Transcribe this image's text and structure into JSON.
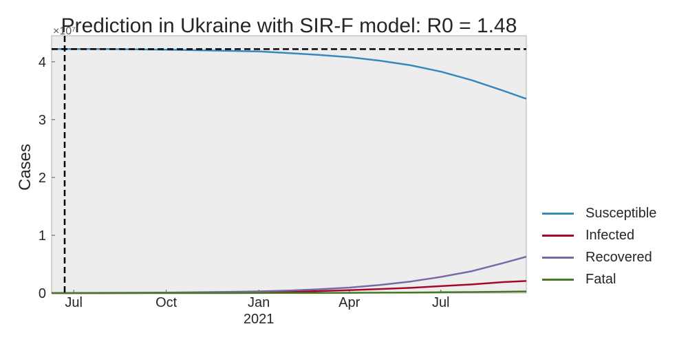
{
  "chart_data": {
    "type": "line",
    "title": "Prediction in Ukraine with SIR-F model: R0 = 1.48",
    "xlabel": "",
    "ylabel": "Cases",
    "offset_label": "×10⁷",
    "xlim": [
      "2020-06-09",
      "2021-09-24"
    ],
    "ylim": [
      0,
      4.45
    ],
    "ymarker": 4.22,
    "xmarker": "2020-06-22",
    "y_ticks": [
      {
        "value": 0,
        "label": "0"
      },
      {
        "value": 1,
        "label": "1"
      },
      {
        "value": 2,
        "label": "2"
      },
      {
        "value": 3,
        "label": "3"
      },
      {
        "value": 4,
        "label": "4"
      }
    ],
    "x_ticks": [
      {
        "date": "2020-07-01",
        "label": "Jul",
        "sublabel": ""
      },
      {
        "date": "2020-10-01",
        "label": "Oct",
        "sublabel": ""
      },
      {
        "date": "2021-01-01",
        "label": "Jan",
        "sublabel": "2021"
      },
      {
        "date": "2021-04-01",
        "label": "Apr",
        "sublabel": ""
      },
      {
        "date": "2021-07-01",
        "label": "Jul",
        "sublabel": ""
      }
    ],
    "x": [
      "2020-06-09",
      "2020-08-01",
      "2020-10-01",
      "2020-12-01",
      "2021-01-01",
      "2021-02-01",
      "2021-03-01",
      "2021-04-01",
      "2021-05-01",
      "2021-06-01",
      "2021-07-01",
      "2021-08-01",
      "2021-09-01",
      "2021-09-24"
    ],
    "series": [
      {
        "name": "Susceptible",
        "color": "#348ABD",
        "values": [
          4.22,
          4.22,
          4.21,
          4.19,
          4.18,
          4.15,
          4.12,
          4.08,
          4.02,
          3.94,
          3.83,
          3.68,
          3.5,
          3.36
        ]
      },
      {
        "name": "Infected",
        "color": "#A60628",
        "values": [
          0.0,
          0.0,
          0.005,
          0.01,
          0.015,
          0.025,
          0.035,
          0.05,
          0.07,
          0.09,
          0.12,
          0.15,
          0.19,
          0.21
        ]
      },
      {
        "name": "Recovered",
        "color": "#7A68A6",
        "values": [
          0.0,
          0.005,
          0.01,
          0.02,
          0.03,
          0.045,
          0.065,
          0.095,
          0.14,
          0.2,
          0.28,
          0.38,
          0.52,
          0.63
        ]
      },
      {
        "name": "Fatal",
        "color": "#467821",
        "values": [
          0.0,
          0.0,
          0.0,
          0.0,
          0.001,
          0.002,
          0.003,
          0.005,
          0.007,
          0.01,
          0.014,
          0.018,
          0.024,
          0.028
        ]
      }
    ]
  }
}
